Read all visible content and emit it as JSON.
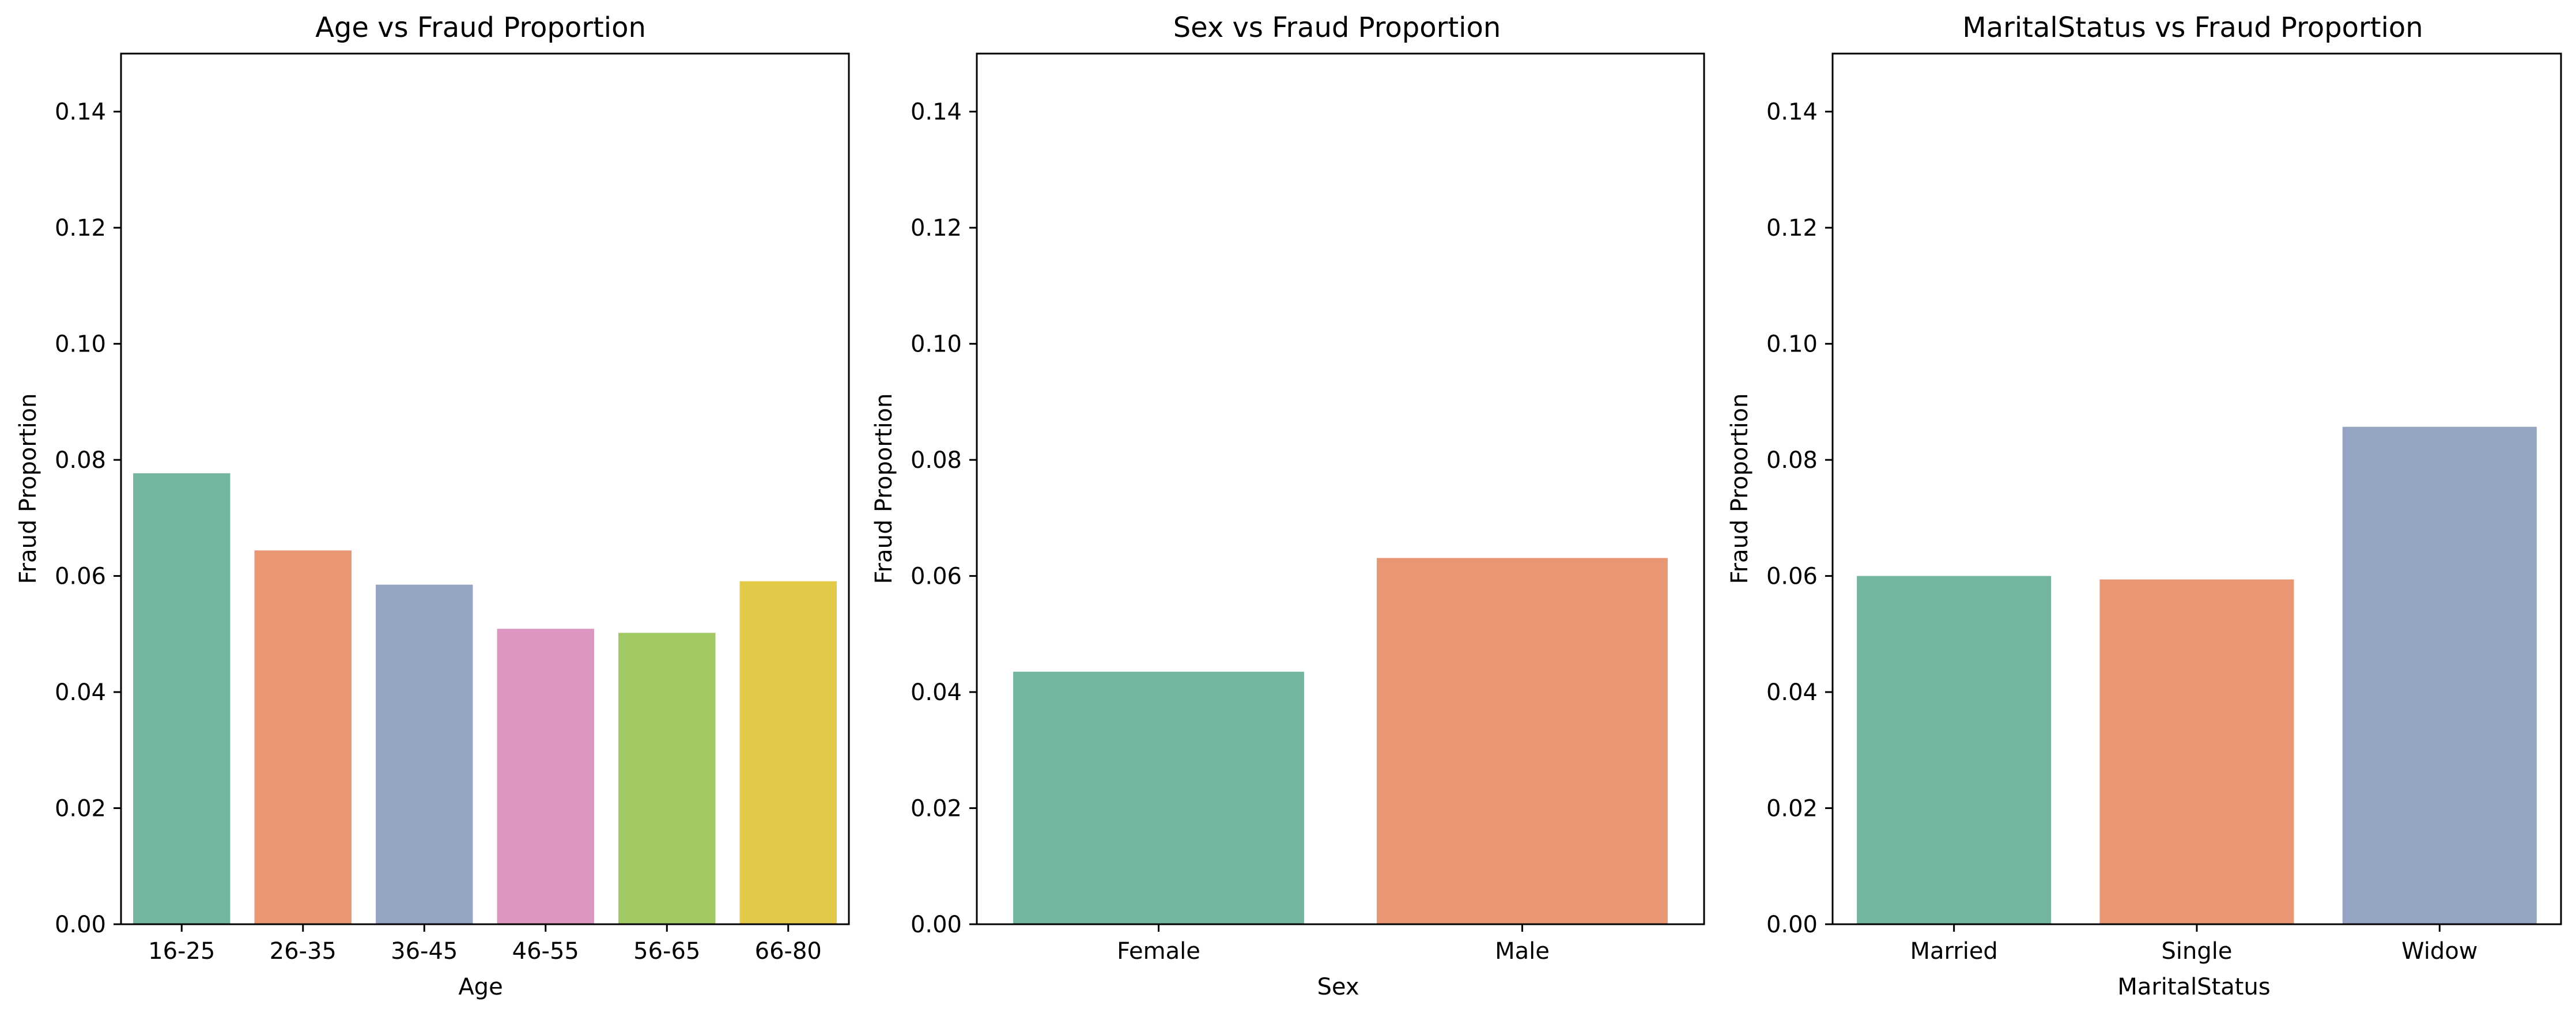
{
  "chart_data": [
    {
      "type": "bar",
      "title": "Age vs Fraud Proportion",
      "xlabel": "Age",
      "ylabel": "Fraud Proportion",
      "categories": [
        "16-25",
        "26-35",
        "36-45",
        "46-55",
        "56-65",
        "66-80"
      ],
      "values": [
        0.0777,
        0.0644,
        0.0585,
        0.0509,
        0.0502,
        0.0591
      ],
      "colors": [
        "#73b59f",
        "#e89674",
        "#94a4c2",
        "#db97c0",
        "#a2c863",
        "#e2c947"
      ],
      "ylim": [
        0,
        0.15
      ],
      "yticks": [
        "0.00",
        "0.02",
        "0.04",
        "0.06",
        "0.08",
        "0.10",
        "0.12",
        "0.14"
      ],
      "grid": false,
      "legend": "none"
    },
    {
      "type": "bar",
      "title": "Sex vs Fraud Proportion",
      "xlabel": "Sex",
      "ylabel": "Fraud Proportion",
      "categories": [
        "Female",
        "Male"
      ],
      "values": [
        0.0435,
        0.0631
      ],
      "colors": [
        "#73b59f",
        "#e89674"
      ],
      "ylim": [
        0,
        0.15
      ],
      "yticks": [
        "0.00",
        "0.02",
        "0.04",
        "0.06",
        "0.08",
        "0.10",
        "0.12",
        "0.14"
      ],
      "grid": false,
      "legend": "none"
    },
    {
      "type": "bar",
      "title": "MaritalStatus vs Fraud Proportion",
      "xlabel": "MaritalStatus",
      "ylabel": "Fraud Proportion",
      "categories": [
        "Married",
        "Single",
        "Widow"
      ],
      "values": [
        0.06,
        0.0594,
        0.0857
      ],
      "colors": [
        "#73b59f",
        "#e89674",
        "#94a4c2"
      ],
      "ylim": [
        0,
        0.15
      ],
      "yticks": [
        "0.00",
        "0.02",
        "0.04",
        "0.06",
        "0.08",
        "0.10",
        "0.12",
        "0.14"
      ],
      "grid": false,
      "legend": "none"
    }
  ]
}
